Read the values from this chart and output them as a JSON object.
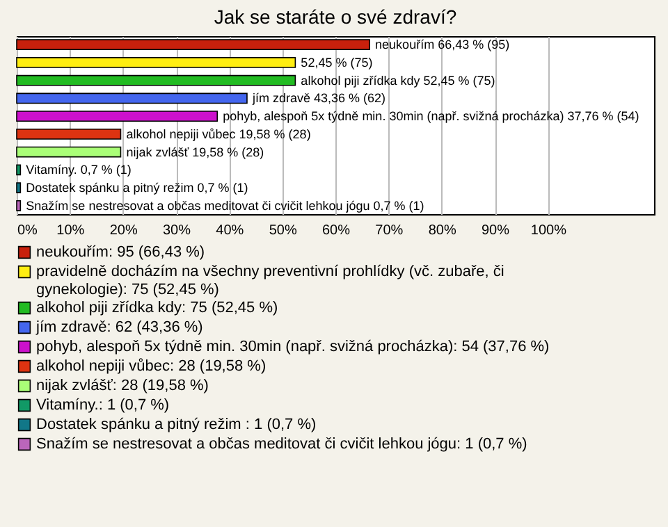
{
  "chart_data": {
    "type": "bar",
    "orientation": "horizontal",
    "title": "Jak se staráte o své zdraví?",
    "categories": [
      null,
      null,
      null,
      null,
      null,
      null,
      null,
      null,
      null,
      null
    ],
    "series": [
      {
        "name": "neukouřím: 95 (66,43 %)",
        "color": "#c8200c",
        "values": [
          66.43,
          null,
          null,
          null,
          null,
          null,
          null,
          null,
          null,
          null
        ],
        "value_labels": [
          "neukouřím 66,43 % (95)",
          null,
          null,
          null,
          null,
          null,
          null,
          null,
          null,
          null
        ]
      },
      {
        "name": "pravidelně docházím na všechny preventivní prohlídky (vč. zubaře, či gynekologie): 75 (52,45 %)",
        "color": "#ffee11",
        "values": [
          null,
          52.45,
          null,
          null,
          null,
          null,
          null,
          null,
          null,
          null
        ],
        "value_labels": [
          null,
          "52,45 % (75)",
          null,
          null,
          null,
          null,
          null,
          null,
          null,
          null
        ]
      },
      {
        "name": "alkohol piji zřídka kdy: 75 (52,45 %)",
        "color": "#22bb22",
        "values": [
          null,
          null,
          52.45,
          null,
          null,
          null,
          null,
          null,
          null,
          null
        ],
        "value_labels": [
          null,
          null,
          "alkohol piji zřídka kdy 52,45 % (75)",
          null,
          null,
          null,
          null,
          null,
          null,
          null
        ]
      },
      {
        "name": "jím zdravě: 62 (43,36 %)",
        "color": "#4466ee",
        "values": [
          null,
          null,
          null,
          43.36,
          null,
          null,
          null,
          null,
          null,
          null
        ],
        "value_labels": [
          null,
          null,
          null,
          "jím zdravě 43,36 % (62)",
          null,
          null,
          null,
          null,
          null,
          null
        ]
      },
      {
        "name": "pohyb, alespoň 5x týdně min. 30min (např. svižná procházka): 54 (37,76 %)",
        "color": "#cc11cc",
        "values": [
          null,
          null,
          null,
          null,
          37.76,
          null,
          null,
          null,
          null,
          null
        ],
        "value_labels": [
          null,
          null,
          null,
          null,
          "pohyb, alespoň 5x týdně min. 30min (např. svižná procházka) 37,76 % (54)",
          null,
          null,
          null,
          null,
          null
        ]
      },
      {
        "name": "alkohol nepiji vůbec: 28 (19,58 %)",
        "color": "#dd3311",
        "values": [
          null,
          null,
          null,
          null,
          null,
          19.58,
          null,
          null,
          null,
          null
        ],
        "value_labels": [
          null,
          null,
          null,
          null,
          null,
          "alkohol nepiji vůbec 19,58 % (28)",
          null,
          null,
          null,
          null
        ]
      },
      {
        "name": "nijak zvlášť: 28 (19,58 %)",
        "color": "#aaff77",
        "values": [
          null,
          null,
          null,
          null,
          null,
          null,
          19.58,
          null,
          null,
          null
        ],
        "value_labels": [
          null,
          null,
          null,
          null,
          null,
          null,
          "nijak zvlášť 19,58 % (28)",
          null,
          null,
          null
        ]
      },
      {
        "name": "Vitamíny.: 1 (0,7 %)",
        "color": "#119966",
        "values": [
          null,
          null,
          null,
          null,
          null,
          null,
          null,
          0.7,
          null,
          null
        ],
        "value_labels": [
          null,
          null,
          null,
          null,
          null,
          null,
          null,
          "Vitamíny. 0,7 % (1)",
          null,
          null
        ]
      },
      {
        "name": "Dostatek spánku a pitný režim : 1 (0,7 %)",
        "color": "#117788",
        "values": [
          null,
          null,
          null,
          null,
          null,
          null,
          null,
          null,
          0.7,
          null
        ],
        "value_labels": [
          null,
          null,
          null,
          null,
          null,
          null,
          null,
          null,
          "Dostatek spánku a pitný režim  0,7 % (1)",
          null
        ]
      },
      {
        "name": "Snažím se nestresovat a občas meditovat či cvičit lehkou jógu: 1 (0,7 %)",
        "color": "#bb66bb",
        "values": [
          null,
          null,
          null,
          null,
          null,
          null,
          null,
          null,
          null,
          0.7
        ],
        "value_labels": [
          null,
          null,
          null,
          null,
          null,
          null,
          null,
          null,
          null,
          "Snažím se nestresovat a občas meditovat či cvičit lehkou jógu 0,7 % (1)"
        ]
      }
    ],
    "xlim": [
      0,
      120
    ],
    "xticks": [
      {
        "value": 0,
        "label": "0%"
      },
      {
        "value": 10,
        "label": "10%"
      },
      {
        "value": 20,
        "label": "20%"
      },
      {
        "value": 30,
        "label": "30%"
      },
      {
        "value": 40,
        "label": "40%"
      },
      {
        "value": 50,
        "label": "50%"
      },
      {
        "value": 60,
        "label": "60%"
      },
      {
        "value": 70,
        "label": "70%"
      },
      {
        "value": 80,
        "label": "80%"
      },
      {
        "value": 90,
        "label": "90%"
      },
      {
        "value": 100,
        "label": "100%"
      }
    ],
    "grid": "x",
    "legend": "bottom",
    "tick_labels": "x"
  }
}
